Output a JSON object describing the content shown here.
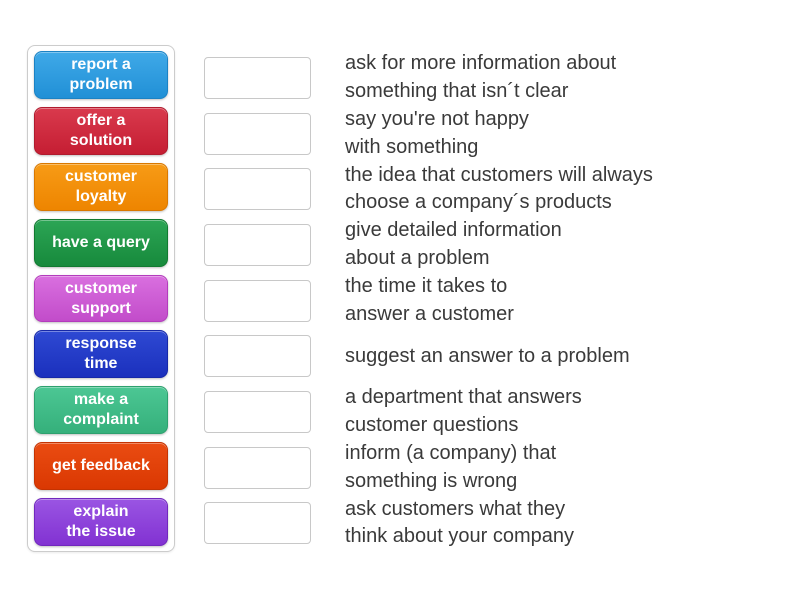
{
  "tiles": [
    {
      "label": "report a problem",
      "lines": [
        "report a",
        "problem"
      ],
      "color_top": "#3fa9e8",
      "color_bottom": "#2190d6",
      "color_border": "#1b82c4"
    },
    {
      "label": "offer a solution",
      "lines": [
        "offer a",
        "solution"
      ],
      "color_top": "#d93a4d",
      "color_bottom": "#c51e33",
      "color_border": "#b01b2e"
    },
    {
      "label": "customer loyalty",
      "lines": [
        "customer",
        "loyalty"
      ],
      "color_top": "#f79b16",
      "color_bottom": "#ee8500",
      "color_border": "#d97800"
    },
    {
      "label": "have a query",
      "lines": [
        "have a query"
      ],
      "color_top": "#2ca555",
      "color_bottom": "#178a3c",
      "color_border": "#117a30"
    },
    {
      "label": "customer support",
      "lines": [
        "customer",
        "support"
      ],
      "color_top": "#d96fdf",
      "color_bottom": "#c24cca",
      "color_border": "#b33cbc"
    },
    {
      "label": "response time",
      "lines": [
        "response",
        "time"
      ],
      "color_top": "#2e49d3",
      "color_bottom": "#1b30bd",
      "color_border": "#1628a8"
    },
    {
      "label": "make a complaint",
      "lines": [
        "make a",
        "complaint"
      ],
      "color_top": "#4cc794",
      "color_bottom": "#35b07b",
      "color_border": "#2da06e"
    },
    {
      "label": "get feedback",
      "lines": [
        "get feedback"
      ],
      "color_top": "#ea4c12",
      "color_bottom": "#da3802",
      "color_border": "#c43302"
    },
    {
      "label": "explain the issue",
      "lines": [
        "explain",
        "the issue"
      ],
      "color_top": "#9a55e3",
      "color_bottom": "#8232d2",
      "color_border": "#7128bd"
    }
  ],
  "definitions": [
    {
      "lines": [
        "ask for more information about",
        "something that isn´t clear"
      ]
    },
    {
      "lines": [
        "say you're not happy",
        "with something"
      ]
    },
    {
      "lines": [
        "the idea that customers will always",
        "choose a company´s products"
      ]
    },
    {
      "lines": [
        "give detailed information",
        "about a problem"
      ]
    },
    {
      "lines": [
        "the time it takes to",
        "answer a customer"
      ]
    },
    {
      "lines": [
        "suggest an answer to a problem"
      ]
    },
    {
      "lines": [
        "a department that answers",
        "customer questions"
      ]
    },
    {
      "lines": [
        "inform (a company) that",
        "something is wrong"
      ]
    },
    {
      "lines": [
        "ask customers what they",
        "think about your company"
      ]
    }
  ],
  "colors": {
    "panel_border": "#cccccc",
    "slot_border": "#c8c8c8",
    "definition_text": "#3a3a3a",
    "tile_text": "#ffffff",
    "background": "#ffffff"
  }
}
